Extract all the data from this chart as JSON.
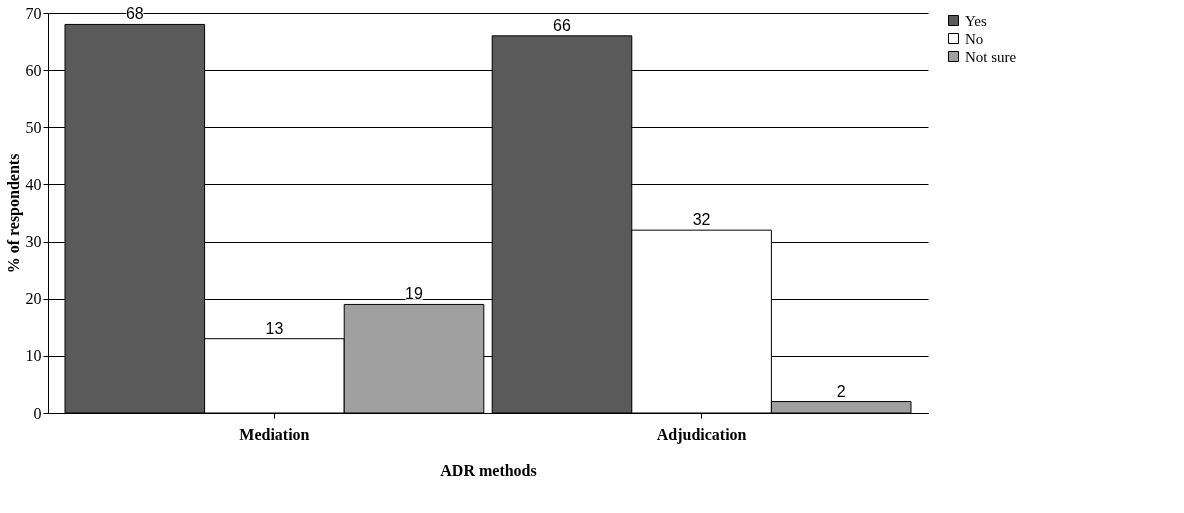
{
  "chart_data": {
    "type": "bar",
    "xlabel": "ADR methods",
    "ylabel": "% of respondents",
    "categories": [
      "Mediation",
      "Adjudication"
    ],
    "series": [
      {
        "name": "Yes",
        "color": "#5a5a5a",
        "values": [
          68,
          66
        ]
      },
      {
        "name": "No",
        "color": "#ffffff",
        "values": [
          13,
          32
        ]
      },
      {
        "name": "Not sure",
        "color": "#a0a0a0",
        "values": [
          19,
          2
        ]
      }
    ],
    "ylim": [
      0,
      70
    ],
    "yticks": [
      0,
      10,
      20,
      30,
      40,
      50,
      60,
      70
    ],
    "grid": "y",
    "legend": "right",
    "data_labels": true
  }
}
